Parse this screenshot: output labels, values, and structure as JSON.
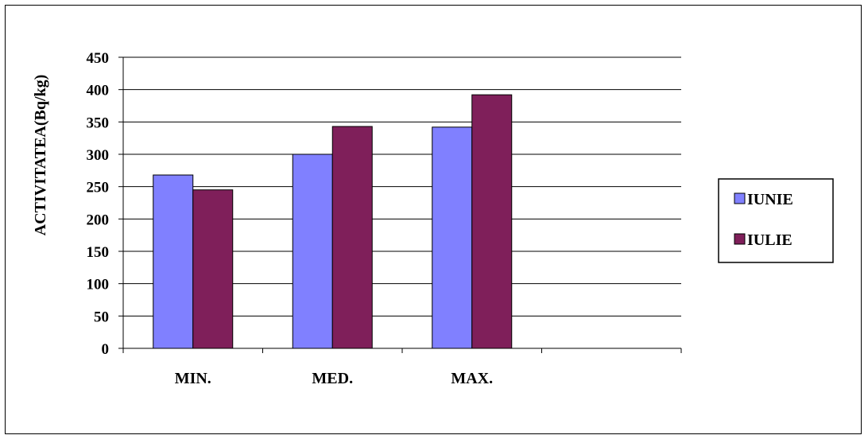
{
  "chart_data": {
    "type": "bar",
    "title": "",
    "xlabel": "",
    "ylabel": "ACTIVITATEA(Bq/kg)",
    "ylim": [
      0,
      450
    ],
    "yticks": [
      0,
      50,
      100,
      150,
      200,
      250,
      300,
      350,
      400,
      450
    ],
    "categories": [
      "MIN.",
      "MED.",
      "MAX."
    ],
    "series": [
      {
        "name": "IUNIE",
        "color": "#8080ff",
        "values": [
          268,
          300,
          342
        ]
      },
      {
        "name": "IULIE",
        "color": "#7f1f5a",
        "values": [
          245,
          343,
          392
        ]
      }
    ],
    "grid": true,
    "legend_position": "right"
  }
}
